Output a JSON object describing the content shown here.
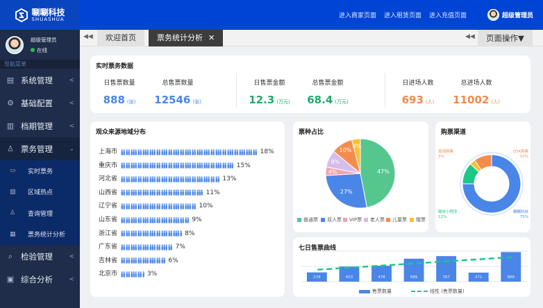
{
  "brand": {
    "name_cn": "唰唰科技",
    "name_en": "SHUASHUA"
  },
  "header": {
    "links": [
      "进入商家页面",
      "进入租赁页面",
      "进入充值页面"
    ],
    "user": "超级管理员"
  },
  "sidebar": {
    "user": "超级管理员",
    "status": "在线",
    "nav_title": "导航菜单",
    "items": [
      {
        "label": "系统管理",
        "icon": "server-icon"
      },
      {
        "label": "基础配置",
        "icon": "gear-icon"
      },
      {
        "label": "档期管理",
        "icon": "calendar-book-icon"
      },
      {
        "label": "票务管理",
        "icon": "org-chart-icon",
        "expanded": true
      }
    ],
    "sub_items": [
      {
        "label": "实时票务",
        "icon": "ticket-icon"
      },
      {
        "label": "区域热点",
        "icon": "heatmap-icon"
      },
      {
        "label": "查询管理",
        "icon": "org-chart-icon"
      },
      {
        "label": "票务统计分析",
        "icon": "stats-icon"
      }
    ],
    "items_after": [
      {
        "label": "检验管理",
        "icon": "inspect-icon"
      },
      {
        "label": "综合分析",
        "icon": "report-icon"
      }
    ]
  },
  "tabs": {
    "items": [
      "欢迎首页",
      "票务统计分析"
    ],
    "active": 1,
    "page_ops": "页面操作▼"
  },
  "realtime": {
    "title": "实时票务数据",
    "stats": [
      {
        "label": "日售票数量",
        "value": "888",
        "unit": "(张)",
        "color": "#4a86e8"
      },
      {
        "label": "总售票数量",
        "value": "12546",
        "unit": "(张)",
        "color": "#4a86e8"
      },
      {
        "label": "日售票金额",
        "value": "12.3",
        "unit": "(万元)",
        "color": "#1faa6a"
      },
      {
        "label": "总售票金额",
        "value": "68.4",
        "unit": "(万元)",
        "color": "#1faa6a"
      },
      {
        "label": "日进场人数",
        "value": "693",
        "unit": "(人)",
        "color": "#f08a4b"
      },
      {
        "label": "总进场人数",
        "value": "11002",
        "unit": "(人)",
        "color": "#f08a4b"
      }
    ]
  },
  "chart_data": [
    {
      "type": "bar",
      "title": "观众来源地域分布",
      "categories": [
        "上海市",
        "重庆市",
        "河北省",
        "山西省",
        "辽宁省",
        "山东省",
        "浙江省",
        "广东省",
        "吉林省",
        "北京市"
      ],
      "values": [
        18,
        15,
        13,
        11,
        10,
        9,
        8,
        7,
        6,
        3
      ],
      "labels": [
        "18%",
        "15%",
        "13%",
        "11%",
        "10%",
        "9%",
        "8%",
        "7%",
        "6%",
        "3%"
      ],
      "color": "#4a86e8"
    },
    {
      "type": "pie",
      "title": "票种占比",
      "categories": [
        "普通票",
        "双人票",
        "VIP票",
        "老人票",
        "儿童票",
        "赠票"
      ],
      "values": [
        47,
        27,
        4,
        8,
        10,
        4
      ],
      "labels": [
        "47%",
        "27%",
        "4%",
        "8%",
        "10%",
        "4%"
      ],
      "colors": [
        "#56c68f",
        "#4a86e8",
        "#f4a3ab",
        "#d8bcec",
        "#f58c4f",
        "#fbc131"
      ],
      "legend": "bottom"
    },
    {
      "type": "pie",
      "title": "购票渠道",
      "donut": true,
      "categories": [
        "唰唰科技",
        "微信小程序",
        "现场购票",
        "OTA购票"
      ],
      "values": [
        75,
        12,
        3,
        10
      ],
      "labels": [
        "唰唰科技\n75%",
        "微信小程序\n12%",
        "现场购票\n3%",
        "OTA购票\n10%"
      ],
      "colors": [
        "#4a86e8",
        "#1cc887",
        "#fbc131",
        "#f58c4f"
      ]
    },
    {
      "type": "bar",
      "title": "七日售票曲线",
      "values": [
        278,
        453,
        478,
        689,
        767,
        271,
        888
      ],
      "labels": [
        "278",
        "453",
        "478",
        "689",
        "767",
        "271",
        "888"
      ],
      "ylim": [
        0,
        1000
      ],
      "grid": true,
      "trendline": "linear",
      "legend": "bottom",
      "series": [
        {
          "name": "售票数量",
          "color": "#4a86e8"
        },
        {
          "name": "线性 (售票数量)",
          "color": "#1cc887"
        }
      ]
    }
  ]
}
